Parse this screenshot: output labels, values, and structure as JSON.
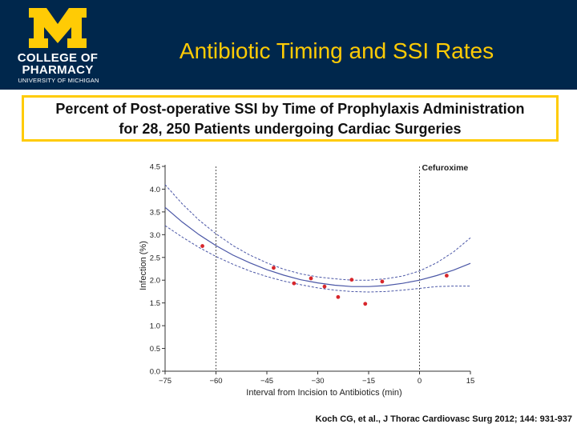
{
  "header": {
    "logo": {
      "line1": "COLLEGE OF",
      "line2": "PHARMACY",
      "line3": "UNIVERSITY OF MICHIGAN",
      "mark_color": "#ffcb05"
    },
    "title": "Antibiotic Timing and SSI Rates",
    "background_color": "#00274c",
    "title_color": "#ffcb05"
  },
  "subtitle": {
    "line1": "Percent of Post-operative SSI by Time of Prophylaxis Administration",
    "line2": "for 28, 250 Patients undergoing Cardiac Surgeries",
    "border_color": "#ffcb05"
  },
  "chart_data": {
    "type": "line",
    "xlabel": "Interval from Incision to Antibiotics (min)",
    "ylabel": "Infection (%)",
    "xlim": [
      -75,
      15
    ],
    "ylim": [
      0,
      4.5
    ],
    "x_ticks": [
      -75,
      -60,
      -45,
      -30,
      -15,
      0,
      15
    ],
    "x_tick_labels": [
      "−75",
      "−60",
      "−45",
      "−30",
      "−15",
      "0",
      "15"
    ],
    "y_ticks": [
      0,
      0.5,
      1,
      1.5,
      2,
      2.5,
      3,
      3.5,
      4,
      4.5
    ],
    "y_tick_labels": [
      "0.0",
      "0.5",
      "1.0",
      "1.5",
      "2.0",
      "2.5",
      "3.0",
      "3.5",
      "4.0",
      "4.5"
    ],
    "grid": false,
    "reference_lines": [
      {
        "x": -60,
        "label": ""
      },
      {
        "x": 0,
        "label": "Cefuroxime"
      }
    ],
    "series": [
      {
        "role": "fitted",
        "color": "#4a56a6",
        "style": "solid",
        "x": [
          -75,
          -70,
          -65,
          -60,
          -55,
          -50,
          -45,
          -40,
          -35,
          -30,
          -25,
          -20,
          -15,
          -10,
          -5,
          0,
          5,
          10,
          15
        ],
        "y": [
          3.6,
          3.28,
          3.0,
          2.76,
          2.55,
          2.38,
          2.23,
          2.11,
          2.01,
          1.94,
          1.89,
          1.86,
          1.86,
          1.88,
          1.93,
          2.0,
          2.1,
          2.22,
          2.37
        ]
      },
      {
        "role": "upper-ci",
        "color": "#4a56a6",
        "style": "dashed",
        "x": [
          -75,
          -70,
          -65,
          -60,
          -55,
          -50,
          -45,
          -40,
          -35,
          -30,
          -25,
          -20,
          -15,
          -10,
          -5,
          0,
          5,
          10,
          15
        ],
        "y": [
          4.1,
          3.68,
          3.32,
          3.02,
          2.76,
          2.55,
          2.38,
          2.24,
          2.14,
          2.07,
          2.03,
          2.0,
          2.0,
          2.03,
          2.09,
          2.2,
          2.38,
          2.62,
          2.93
        ]
      },
      {
        "role": "lower-ci",
        "color": "#4a56a6",
        "style": "dashed",
        "x": [
          -75,
          -70,
          -65,
          -60,
          -55,
          -50,
          -45,
          -40,
          -35,
          -30,
          -25,
          -20,
          -15,
          -10,
          -5,
          0,
          5,
          10,
          15
        ],
        "y": [
          3.2,
          2.95,
          2.72,
          2.52,
          2.35,
          2.2,
          2.08,
          1.98,
          1.9,
          1.83,
          1.78,
          1.75,
          1.74,
          1.75,
          1.78,
          1.82,
          1.86,
          1.87,
          1.87
        ]
      },
      {
        "role": "observed",
        "color": "#d7262b",
        "style": "points",
        "x": [
          -64,
          -43,
          -37,
          -32,
          -28,
          -24,
          -20,
          -16,
          -11,
          8
        ],
        "y": [
          2.75,
          2.27,
          1.93,
          2.04,
          1.86,
          1.63,
          2.01,
          1.48,
          1.97,
          2.1
        ]
      }
    ]
  },
  "citation": "Koch CG, et al., J Thorac Cardiovasc Surg 2012; 144: 931-937"
}
